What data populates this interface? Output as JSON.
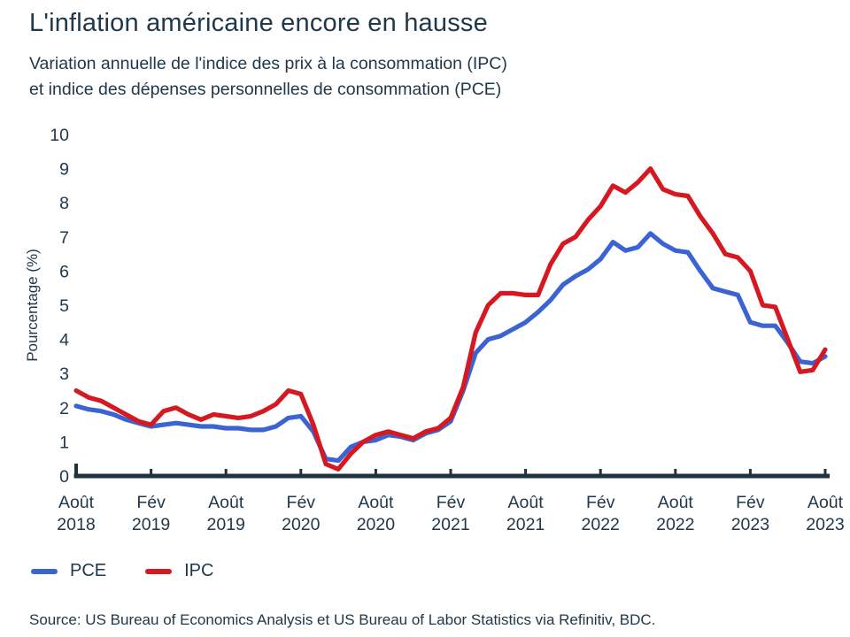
{
  "header": {
    "title": "L'inflation américaine encore en hausse",
    "subtitle_line1": "Variation annuelle de l'indice des prix à la consommation (IPC)",
    "subtitle_line2": "et indice des dépenses personnelles de consommation (PCE)"
  },
  "chart_data": {
    "type": "line",
    "ylabel": "Pourcentage (%)",
    "ylim": [
      0,
      10
    ],
    "y_ticks": [
      0,
      1,
      2,
      3,
      4,
      5,
      6,
      7,
      8,
      9,
      10
    ],
    "grid": false,
    "legend_position": "bottom-left",
    "x_tick_labels": [
      "Août 2018",
      "Fév 2019",
      "Août 2019",
      "Fév 2020",
      "Août 2020",
      "Fév 2021",
      "Août 2021",
      "Fév 2022",
      "Août 2022",
      "Fév 2023",
      "Août 2023"
    ],
    "x_tick_indices": [
      0,
      6,
      12,
      18,
      24,
      30,
      36,
      42,
      48,
      54,
      60
    ],
    "months": [
      "2018-08",
      "2018-09",
      "2018-10",
      "2018-11",
      "2018-12",
      "2019-01",
      "2019-02",
      "2019-03",
      "2019-04",
      "2019-05",
      "2019-06",
      "2019-07",
      "2019-08",
      "2019-09",
      "2019-10",
      "2019-11",
      "2019-12",
      "2020-01",
      "2020-02",
      "2020-03",
      "2020-04",
      "2020-05",
      "2020-06",
      "2020-07",
      "2020-08",
      "2020-09",
      "2020-10",
      "2020-11",
      "2020-12",
      "2021-01",
      "2021-02",
      "2021-03",
      "2021-04",
      "2021-05",
      "2021-06",
      "2021-07",
      "2021-08",
      "2021-09",
      "2021-10",
      "2021-11",
      "2021-12",
      "2022-01",
      "2022-02",
      "2022-03",
      "2022-04",
      "2022-05",
      "2022-06",
      "2022-07",
      "2022-08",
      "2022-09",
      "2022-10",
      "2022-11",
      "2022-12",
      "2023-01",
      "2023-02",
      "2023-03",
      "2023-04",
      "2023-05",
      "2023-06",
      "2023-07",
      "2023-08"
    ],
    "series": [
      {
        "name": "PCE",
        "color": "#3b63d1",
        "values": [
          2.05,
          1.95,
          1.9,
          1.8,
          1.65,
          1.55,
          1.45,
          1.5,
          1.55,
          1.5,
          1.45,
          1.45,
          1.4,
          1.4,
          1.35,
          1.35,
          1.45,
          1.7,
          1.75,
          1.3,
          0.5,
          0.45,
          0.85,
          1.0,
          1.05,
          1.2,
          1.15,
          1.05,
          1.25,
          1.35,
          1.6,
          2.5,
          3.6,
          4.0,
          4.1,
          4.3,
          4.5,
          4.8,
          5.15,
          5.6,
          5.85,
          6.05,
          6.35,
          6.85,
          6.6,
          6.7,
          7.1,
          6.8,
          6.6,
          6.55,
          6.0,
          5.5,
          5.4,
          5.3,
          4.5,
          4.4,
          4.4,
          3.9,
          3.35,
          3.3,
          3.5
        ]
      },
      {
        "name": "IPC",
        "color": "#d61920",
        "values": [
          2.5,
          2.3,
          2.2,
          2.0,
          1.8,
          1.6,
          1.5,
          1.9,
          2.0,
          1.8,
          1.65,
          1.8,
          1.75,
          1.7,
          1.75,
          1.9,
          2.1,
          2.5,
          2.4,
          1.5,
          0.35,
          0.2,
          0.65,
          1.0,
          1.2,
          1.3,
          1.2,
          1.1,
          1.3,
          1.4,
          1.7,
          2.6,
          4.2,
          5.0,
          5.35,
          5.35,
          5.3,
          5.3,
          6.2,
          6.8,
          7.0,
          7.5,
          7.9,
          8.5,
          8.3,
          8.6,
          9.0,
          8.4,
          8.25,
          8.2,
          7.6,
          7.1,
          6.5,
          6.4,
          6.0,
          5.0,
          4.95,
          4.0,
          3.05,
          3.1,
          3.7
        ]
      }
    ]
  },
  "legend": {
    "items": [
      {
        "label": "PCE",
        "color": "#3b63d1"
      },
      {
        "label": "IPC",
        "color": "#d61920"
      }
    ]
  },
  "footer": {
    "source": "Source: US Bureau of Economics Analysis et US Bureau of Labor Statistics via Refinitiv, BDC."
  },
  "colors": {
    "text": "#20384a",
    "axis": "#1f3240"
  }
}
